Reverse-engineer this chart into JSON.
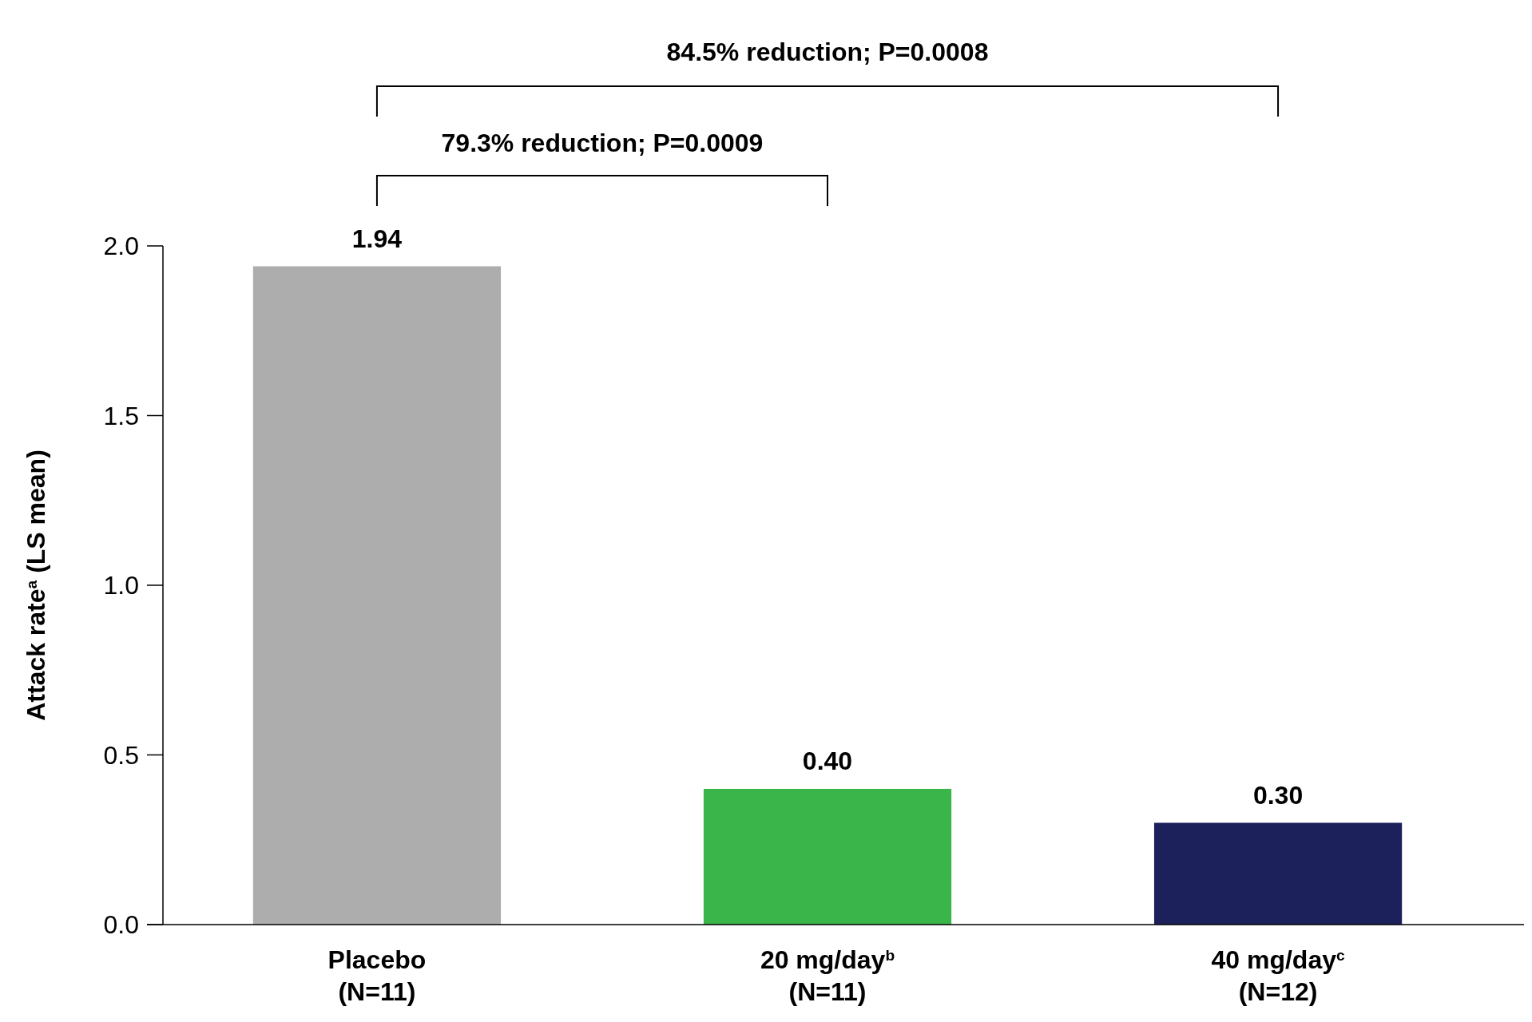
{
  "chart_data": {
    "type": "bar",
    "ylabel": "Attack rate$^{a}$ (LS mean)",
    "categories": [
      "Placebo\n(N=11)",
      "20 mg/day$^{b}$\n(N=11)",
      "40 mg/day$^{c}$\n(N=12)"
    ],
    "values": [
      1.94,
      0.4,
      0.3
    ],
    "colors": [
      "#adadad",
      "#39b54a",
      "#1c215c"
    ],
    "value_labels": [
      "1.94",
      "0.40",
      "0.30"
    ],
    "ylim": [
      0,
      2
    ],
    "yticks": [
      {
        "value": 0,
        "label": "0.0"
      },
      {
        "value": 0.5,
        "label": "0.5"
      },
      {
        "value": 1,
        "label": "1.0"
      },
      {
        "value": 1.5,
        "label": "1.5"
      },
      {
        "value": 2,
        "label": "2.0"
      }
    ],
    "grid": false,
    "annotations": [
      "84.5% reduction; P=0.0008",
      "79.3% reduction; P=0.0009"
    ]
  }
}
